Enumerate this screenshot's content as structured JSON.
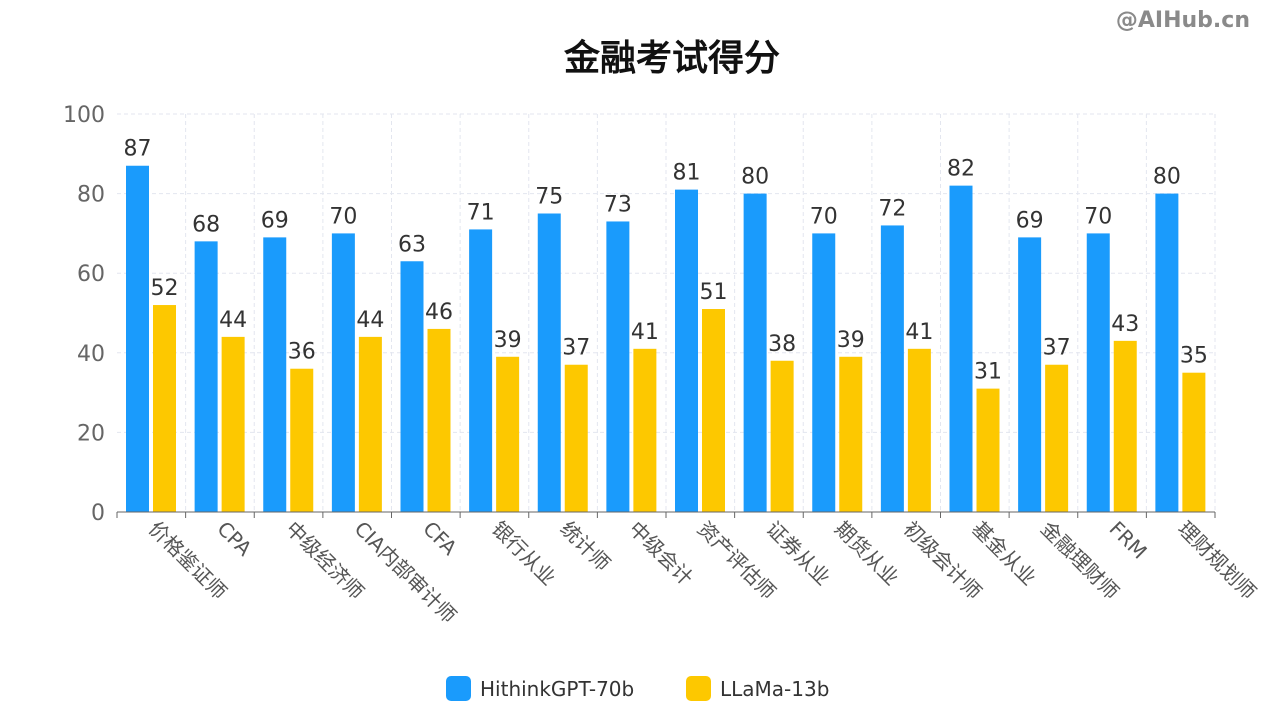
{
  "watermark": "@AIHub.cn",
  "chart_data": {
    "type": "bar",
    "title": "金融考试得分",
    "xlabel": "",
    "ylabel": "",
    "ylim": [
      0,
      100
    ],
    "yticks": [
      0,
      20,
      40,
      60,
      80,
      100
    ],
    "grid": true,
    "legend_position": "bottom",
    "categories": [
      "价格鉴证师",
      "CPA",
      "中级经济师",
      "CIA内部审计师",
      "CFA",
      "银行从业",
      "统计师",
      "中级会计",
      "资产评估师",
      "证券从业",
      "期货从业",
      "初级会计师",
      "基金从业",
      "金融理财师",
      "FRM",
      "理财规划师"
    ],
    "series": [
      {
        "name": "HithinkGPT-70b",
        "color": "#1a9bfc",
        "values": [
          87,
          68,
          69,
          70,
          63,
          71,
          75,
          73,
          81,
          80,
          70,
          72,
          82,
          69,
          70,
          80
        ]
      },
      {
        "name": "LLaMa-13b",
        "color": "#fdc800",
        "values": [
          52,
          44,
          36,
          44,
          46,
          39,
          37,
          41,
          51,
          38,
          39,
          41,
          31,
          37,
          43,
          35
        ]
      }
    ]
  }
}
